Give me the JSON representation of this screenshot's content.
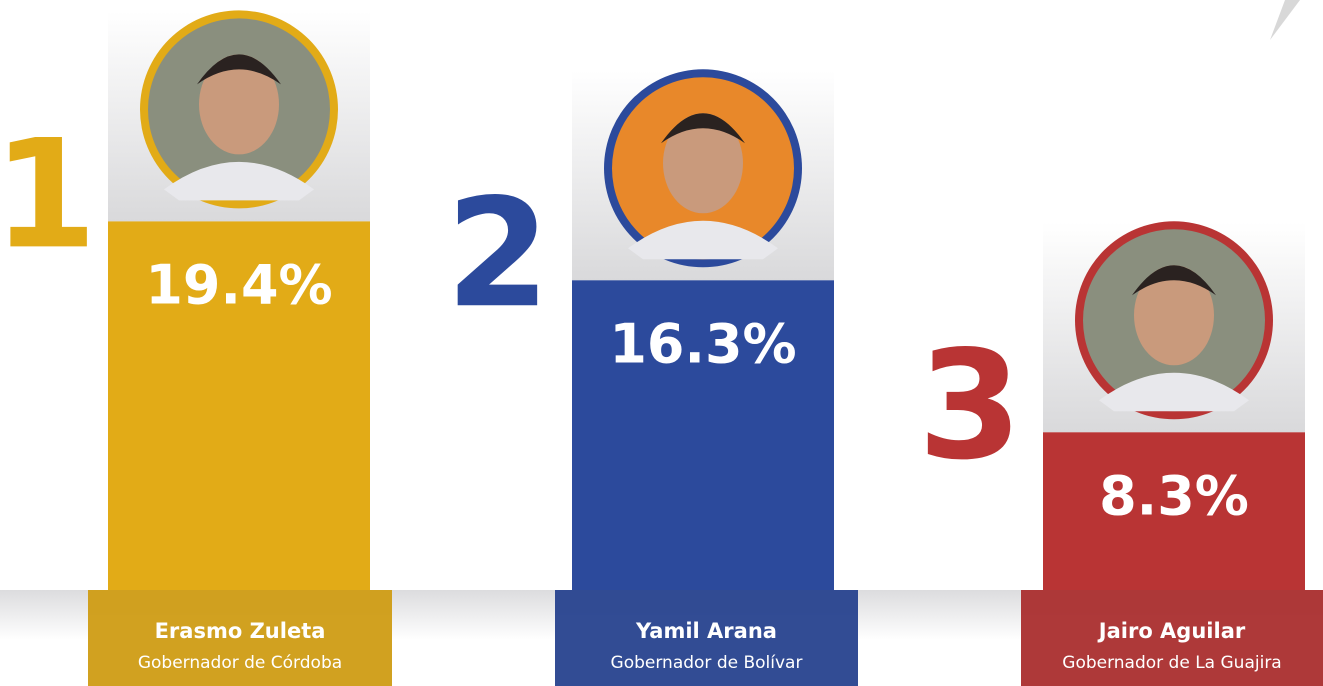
{
  "chart_data": {
    "type": "bar",
    "ranks": [
      1,
      2,
      3
    ],
    "categories": [
      "Erasmo Zuleta",
      "Yamil Arana",
      "Jairo Aguilar"
    ],
    "subtitles": [
      "Gobernador de Córdoba",
      "Gobernador de Bolívar",
      "Gobernador de La Guajira"
    ],
    "values": [
      19.4,
      16.3,
      8.3
    ],
    "value_labels": [
      "19.4%",
      "16.3%",
      "8.3%"
    ],
    "colors": [
      "#e2ab17",
      "#2c4a9c",
      "#b93434"
    ]
  }
}
